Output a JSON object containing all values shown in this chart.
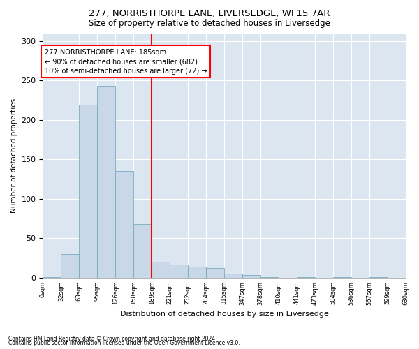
{
  "title1": "277, NORRISTHORPE LANE, LIVERSEDGE, WF15 7AR",
  "title2": "Size of property relative to detached houses in Liversedge",
  "xlabel": "Distribution of detached houses by size in Liversedge",
  "ylabel": "Number of detached properties",
  "footnote1": "Contains HM Land Registry data © Crown copyright and database right 2024.",
  "footnote2": "Contains public sector information licensed under the Open Government Licence v3.0.",
  "bar_color": "#c8d8e8",
  "bar_edge_color": "#7aaabf",
  "bg_color": "#dce6f0",
  "annotation_text": "277 NORRISTHORPE LANE: 185sqm\n← 90% of detached houses are smaller (682)\n10% of semi-detached houses are larger (72) →",
  "annotation_box_color": "white",
  "annotation_edge_color": "red",
  "vline_x": 6,
  "vline_color": "red",
  "bin_labels": [
    "0sqm",
    "32sqm",
    "63sqm",
    "95sqm",
    "126sqm",
    "158sqm",
    "189sqm",
    "221sqm",
    "252sqm",
    "284sqm",
    "315sqm",
    "347sqm",
    "378sqm",
    "410sqm",
    "441sqm",
    "473sqm",
    "504sqm",
    "536sqm",
    "567sqm",
    "599sqm",
    "630sqm"
  ],
  "values": [
    1,
    30,
    219,
    243,
    135,
    68,
    20,
    17,
    14,
    12,
    5,
    3,
    1,
    0,
    1,
    0,
    1,
    0,
    1,
    0
  ],
  "ylim": [
    0,
    310
  ],
  "yticks": [
    0,
    50,
    100,
    150,
    200,
    250,
    300
  ]
}
